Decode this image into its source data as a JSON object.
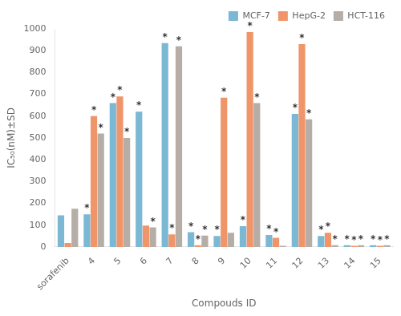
{
  "chart_data": {
    "type": "bar",
    "categories": [
      "sorafenib",
      "4",
      "5",
      "6",
      "7",
      "8",
      "9",
      "10",
      "11",
      "12",
      "13",
      "14",
      "15"
    ],
    "series": [
      {
        "name": "MCF-7",
        "color": "#7ab8d4",
        "values": [
          145,
          150,
          660,
          620,
          935,
          68,
          50,
          95,
          55,
          610,
          50,
          8,
          8
        ],
        "annotations": [
          null,
          "*",
          "*",
          "*",
          "*",
          "*",
          "*",
          "*",
          "*",
          "*",
          "*",
          "*",
          "*"
        ]
      },
      {
        "name": "HepG-2",
        "color": "#f0956a",
        "values": [
          18,
          600,
          690,
          98,
          58,
          8,
          685,
          985,
          42,
          930,
          65,
          5,
          5
        ],
        "annotations": [
          null,
          "*",
          "*",
          null,
          "*",
          "*",
          "*",
          "*",
          "*",
          "*",
          "*",
          "*",
          "*"
        ]
      },
      {
        "name": "HCT-116",
        "color": "#b5ada6",
        "values": [
          175,
          520,
          500,
          90,
          920,
          52,
          65,
          660,
          5,
          585,
          8,
          8,
          8
        ],
        "annotations": [
          null,
          "*",
          "*",
          "*",
          "*",
          "*",
          null,
          "*",
          null,
          "*",
          "*",
          "*",
          "*"
        ]
      }
    ],
    "xlabel": "Compouds ID",
    "ylabel": "IC₅₀(nM)±SD",
    "ylim": [
      0,
      1000
    ],
    "yticks": [
      0,
      100,
      200,
      300,
      400,
      500,
      600,
      700,
      800,
      900,
      1000
    ],
    "grid": false,
    "legend": "upper right"
  }
}
